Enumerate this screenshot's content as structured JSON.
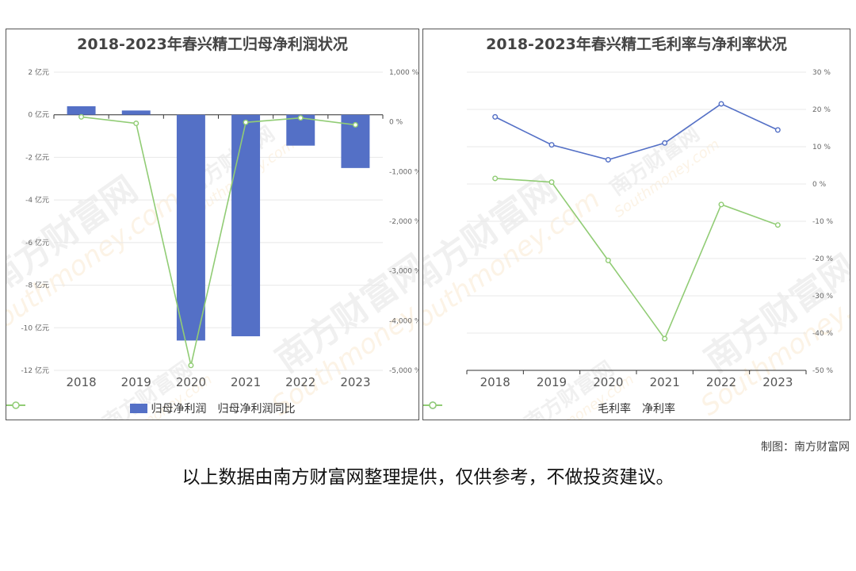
{
  "credit": "制图：南方财富网",
  "disclaimer": "以上数据由南方财富网整理提供，仅供参考，不做投资建议。",
  "watermark": {
    "text_cn": "南方财富网",
    "text_en": "Southmoney.com"
  },
  "colors": {
    "bar": "#5470c6",
    "green": "#91cc75",
    "blue": "#5470c6",
    "grid": "#e8e8e8",
    "axis": "#333333",
    "tick": "#666666"
  },
  "chart_data": [
    {
      "type": "bar",
      "title": "2018-2023年春兴精工归母净利润状况",
      "categories": [
        "2018",
        "2019",
        "2020",
        "2021",
        "2022",
        "2023"
      ],
      "series": [
        {
          "name": "归母净利润",
          "type": "bar",
          "axis": "left",
          "values": [
            0.4,
            0.2,
            -10.6,
            -10.4,
            -1.45,
            -2.5
          ]
        },
        {
          "name": "归母净利润同比",
          "type": "line",
          "axis": "right",
          "values": [
            100,
            -30,
            -4900,
            -10,
            80,
            -60
          ]
        }
      ],
      "y_left": {
        "min": -12,
        "max": 2,
        "step": 2,
        "tick_format": "{v} 亿元"
      },
      "y_right": {
        "min": -5000,
        "max": 1000,
        "step": 1000,
        "tick_format": "{v} %"
      },
      "legend": "bottom-center",
      "grid": true
    },
    {
      "type": "line",
      "title": "2018-2023年春兴精工毛利率与净利率状况",
      "categories": [
        "2018",
        "2019",
        "2020",
        "2021",
        "2022",
        "2023"
      ],
      "series": [
        {
          "name": "毛利率",
          "values": [
            18,
            10.5,
            6.5,
            11,
            21.5,
            14.5
          ]
        },
        {
          "name": "净利率",
          "values": [
            1.5,
            0.5,
            -20.5,
            -41.5,
            -5.5,
            -11
          ]
        }
      ],
      "y_right": {
        "min": -50,
        "max": 30,
        "step": 10,
        "tick_format": "{v} %"
      },
      "legend": "bottom-center",
      "grid": true
    }
  ]
}
